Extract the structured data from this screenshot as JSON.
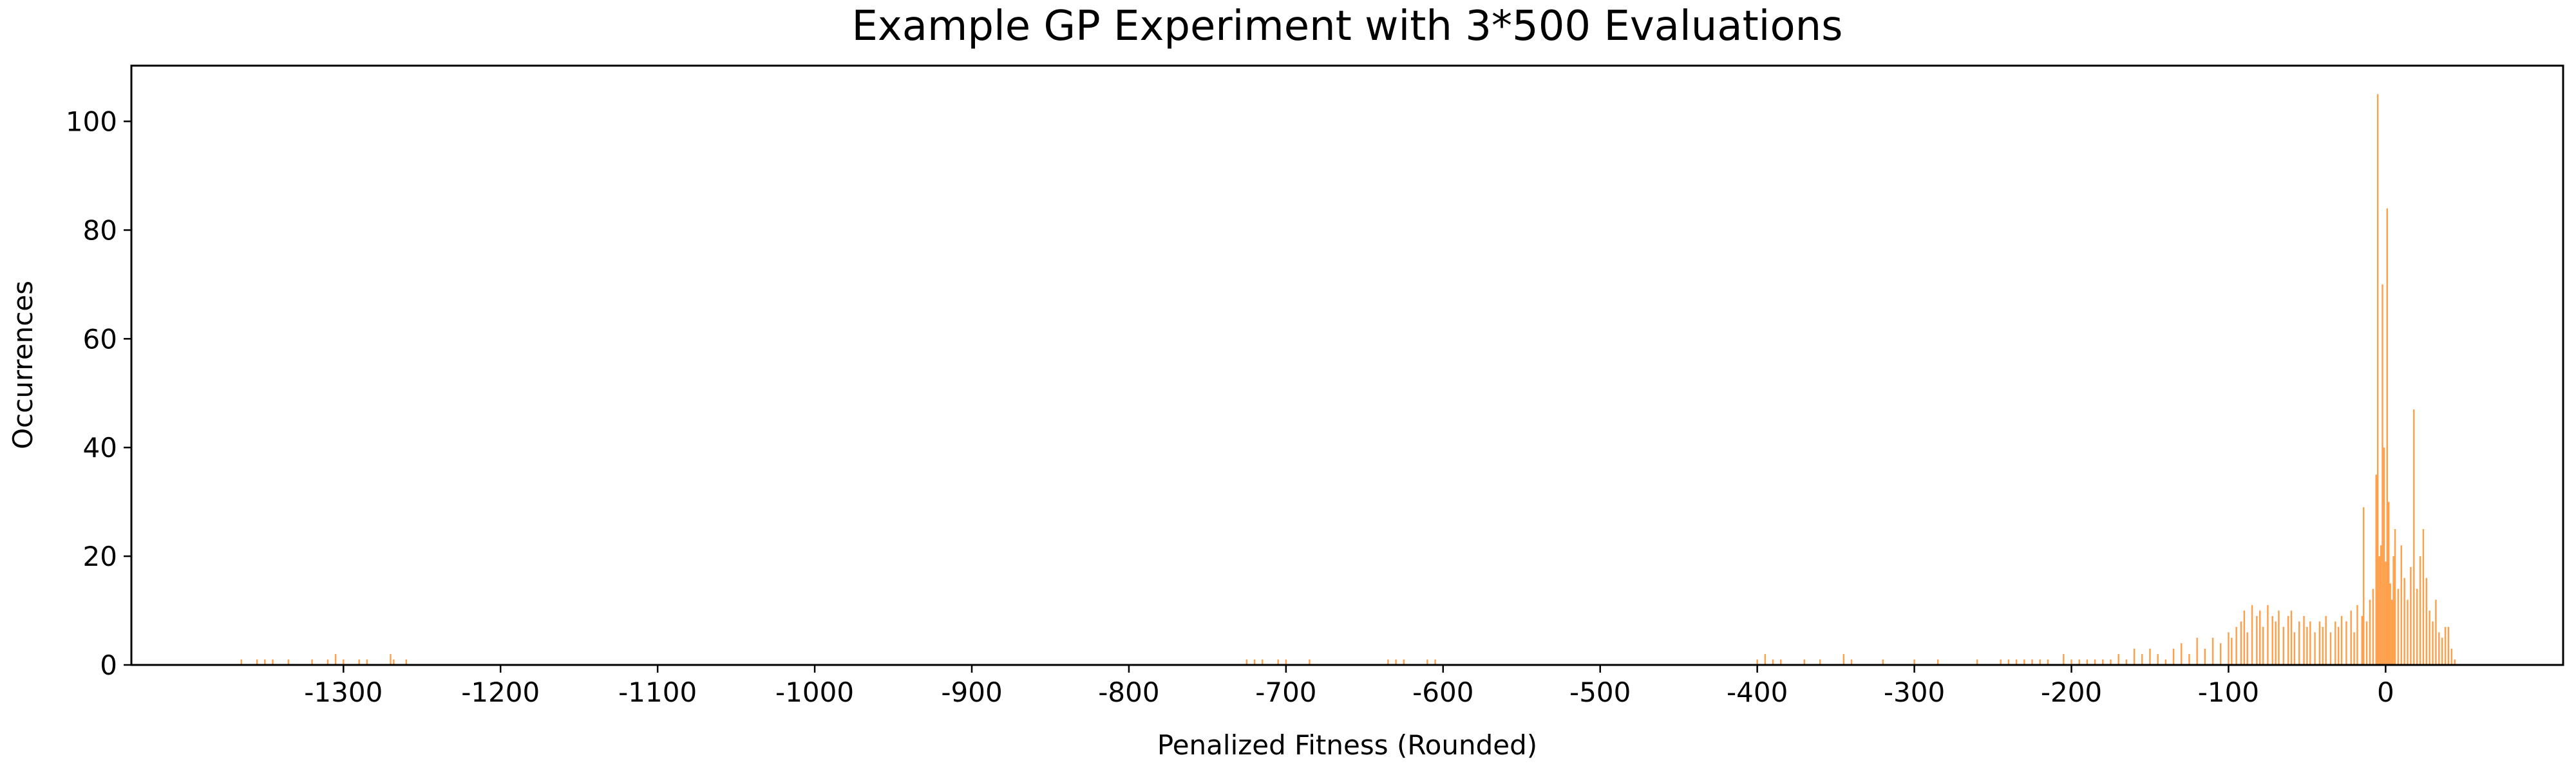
{
  "chart_data": {
    "type": "bar",
    "title": "Example GP Experiment with 3*500 Evaluations",
    "x_label": "Penalized Fitness (Rounded)",
    "y_label": "Occurrences",
    "color": "#ff7f0e",
    "x": [
      -1365,
      -1355,
      -1350,
      -1345,
      -1335,
      -1320,
      -1310,
      -1305,
      -1300,
      -1290,
      -1285,
      -1270,
      -1268,
      -1260,
      -725,
      -720,
      -715,
      -705,
      -700,
      -685,
      -635,
      -630,
      -625,
      -610,
      -605,
      -400,
      -395,
      -390,
      -385,
      -370,
      -360,
      -345,
      -340,
      -320,
      -300,
      -285,
      -260,
      -245,
      -240,
      -235,
      -230,
      -225,
      -220,
      -215,
      -205,
      -200,
      -195,
      -190,
      -185,
      -180,
      -175,
      -170,
      -165,
      -160,
      -155,
      -150,
      -145,
      -140,
      -135,
      -130,
      -125,
      -120,
      -115,
      -110,
      -105,
      -100,
      -98,
      -95,
      -92,
      -90,
      -88,
      -85,
      -82,
      -80,
      -78,
      -75,
      -72,
      -70,
      -68,
      -65,
      -62,
      -60,
      -58,
      -55,
      -52,
      -50,
      -48,
      -45,
      -42,
      -40,
      -38,
      -35,
      -32,
      -30,
      -28,
      -25,
      -22,
      -20,
      -18,
      -15,
      -14,
      -12,
      -10,
      -8,
      -6,
      -5,
      -4,
      -3,
      -2,
      -1,
      0,
      1,
      2,
      3,
      4,
      5,
      6,
      8,
      10,
      12,
      14,
      16,
      18,
      20,
      22,
      24,
      26,
      28,
      30,
      32,
      34,
      36,
      38,
      40,
      42,
      44
    ],
    "values": [
      1,
      1,
      1,
      1,
      1,
      1,
      1,
      2,
      1,
      1,
      1,
      2,
      1,
      1,
      1,
      1,
      1,
      1,
      1,
      1,
      1,
      1,
      1,
      1,
      1,
      1,
      2,
      1,
      1,
      1,
      1,
      2,
      1,
      1,
      1,
      1,
      1,
      1,
      1,
      1,
      1,
      1,
      1,
      1,
      2,
      1,
      1,
      1,
      1,
      1,
      1,
      2,
      1,
      3,
      2,
      3,
      2,
      1,
      3,
      4,
      2,
      5,
      3,
      5,
      4,
      6,
      5,
      7,
      8,
      10,
      6,
      11,
      9,
      10,
      7,
      11,
      9,
      8,
      10,
      7,
      9,
      10,
      6,
      8,
      9,
      7,
      8,
      6,
      8,
      7,
      9,
      6,
      8,
      7,
      9,
      8,
      10,
      6,
      11,
      9,
      29,
      8,
      12,
      14,
      35,
      105,
      20,
      22,
      70,
      40,
      19,
      84,
      30,
      15,
      12,
      20,
      25,
      14,
      22,
      16,
      12,
      18,
      47,
      14,
      20,
      25,
      16,
      10,
      8,
      12,
      6,
      5,
      7,
      7,
      3,
      1
    ],
    "xlim": [
      -1435,
      113
    ],
    "ylim": [
      0,
      110.25
    ],
    "xticks": [
      -1300,
      -1200,
      -1100,
      -1000,
      -900,
      -800,
      -700,
      -600,
      -500,
      -400,
      -300,
      -200,
      -100,
      0
    ],
    "yticks": [
      0,
      20,
      40,
      60,
      80,
      100
    ]
  }
}
